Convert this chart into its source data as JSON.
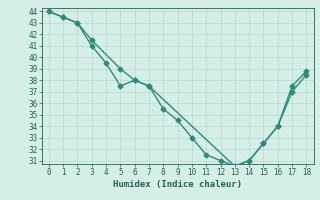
{
  "title": "",
  "xlabel": "Humidex (Indice chaleur)",
  "ylabel": "",
  "background_color": "#d6eee8",
  "line_color": "#2e8b7a",
  "grid_color": "#b8d8d0",
  "x_line1": [
    0,
    1,
    2,
    3,
    4,
    5,
    6,
    7,
    8,
    9,
    10,
    11,
    12,
    13,
    14,
    15,
    16,
    17,
    18
  ],
  "y_line1": [
    44,
    43.5,
    43,
    41,
    39.5,
    37.5,
    38,
    37.5,
    35.5,
    34.5,
    33,
    31.5,
    31,
    30.5,
    31,
    32.5,
    34,
    37,
    38.5
  ],
  "x_line2": [
    0,
    1,
    2,
    3,
    5,
    6,
    7,
    13,
    14,
    15,
    16,
    17,
    18
  ],
  "y_line2": [
    44,
    43.5,
    43,
    41.5,
    39,
    38,
    37.5,
    30.5,
    31,
    32.5,
    34,
    37.5,
    38.8
  ],
  "ylim": [
    31,
    44
  ],
  "xlim": [
    -0.5,
    18.5
  ],
  "yticks": [
    31,
    32,
    33,
    34,
    35,
    36,
    37,
    38,
    39,
    40,
    41,
    42,
    43,
    44
  ],
  "xticks": [
    0,
    1,
    2,
    3,
    4,
    5,
    6,
    7,
    8,
    9,
    10,
    11,
    12,
    13,
    14,
    15,
    16,
    17,
    18
  ],
  "marker": "D",
  "markersize": 2.5,
  "linewidth": 1.0,
  "font_color": "#2a6050",
  "label_fontsize": 6.5,
  "tick_fontsize": 5.5
}
